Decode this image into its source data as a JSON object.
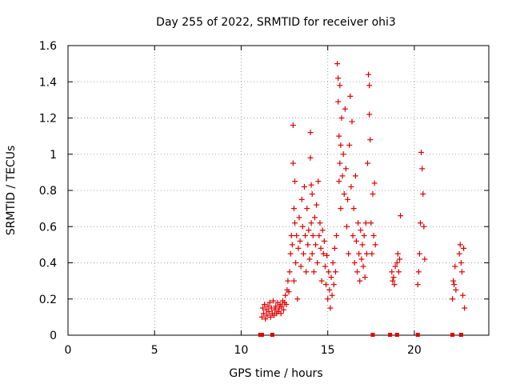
{
  "chart_data": {
    "type": "scatter",
    "title": "Day 255 of 2022, SRMTID for receiver ohi3",
    "xlabel": "GPS time / hours",
    "ylabel": "SRMTID / TECUs",
    "xlim": [
      0,
      24.3
    ],
    "ylim": [
      0,
      1.6
    ],
    "x_ticks": [
      0,
      5,
      10,
      15,
      20
    ],
    "x_tick_labels": [
      "0",
      "5",
      "10",
      "15",
      "20"
    ],
    "y_ticks": [
      0,
      0.2,
      0.4,
      0.6,
      0.8,
      1.0,
      1.2,
      1.4,
      1.6
    ],
    "y_tick_labels": [
      "0",
      "0.2",
      "0.4",
      "0.6",
      "0.8",
      "1",
      "1.2",
      "1.4",
      "1.6"
    ],
    "grid": true,
    "marker": "plus",
    "color": "#e00000",
    "series": [
      {
        "name": "SRMTID",
        "points": [
          [
            11.2,
            0.1
          ],
          [
            11.25,
            0.15
          ],
          [
            11.3,
            0.12
          ],
          [
            11.35,
            0.17
          ],
          [
            11.4,
            0.09
          ],
          [
            11.45,
            0.14
          ],
          [
            11.5,
            0.11
          ],
          [
            11.55,
            0.16
          ],
          [
            11.6,
            0.13
          ],
          [
            11.65,
            0.18
          ],
          [
            11.7,
            0.1
          ],
          [
            11.75,
            0.15
          ],
          [
            11.8,
            0.12
          ],
          [
            11.85,
            0.19
          ],
          [
            11.9,
            0.11
          ],
          [
            11.95,
            0.14
          ],
          [
            12.0,
            0.16
          ],
          [
            12.05,
            0.12
          ],
          [
            12.1,
            0.18
          ],
          [
            12.15,
            0.13
          ],
          [
            12.2,
            0.15
          ],
          [
            12.25,
            0.17
          ],
          [
            12.3,
            0.12
          ],
          [
            12.35,
            0.16
          ],
          [
            12.4,
            0.19
          ],
          [
            12.45,
            0.14
          ],
          [
            12.5,
            0.18
          ],
          [
            12.55,
            0.22
          ],
          [
            12.6,
            0.17
          ],
          [
            12.65,
            0.25
          ],
          [
            12.7,
            0.3
          ],
          [
            12.75,
            0.24
          ],
          [
            12.8,
            0.35
          ],
          [
            12.85,
            0.45
          ],
          [
            12.9,
            0.55
          ],
          [
            12.95,
            0.5
          ],
          [
            13.0,
            1.16
          ],
          [
            13.0,
            0.95
          ],
          [
            13.05,
            0.7
          ],
          [
            13.05,
            0.3
          ],
          [
            13.1,
            0.85
          ],
          [
            13.1,
            0.62
          ],
          [
            13.15,
            0.4
          ],
          [
            13.2,
            0.55
          ],
          [
            13.25,
            0.2
          ],
          [
            13.3,
            0.48
          ],
          [
            13.35,
            0.65
          ],
          [
            13.4,
            0.52
          ],
          [
            13.45,
            0.38
          ],
          [
            13.5,
            0.75
          ],
          [
            13.55,
            0.6
          ],
          [
            13.6,
            0.45
          ],
          [
            13.65,
            0.82
          ],
          [
            13.7,
            0.55
          ],
          [
            13.75,
            0.35
          ],
          [
            13.8,
            0.7
          ],
          [
            13.85,
            0.5
          ],
          [
            13.9,
            0.58
          ],
          [
            13.95,
            0.42
          ],
          [
            14.0,
            1.12
          ],
          [
            14.0,
            0.98
          ],
          [
            14.05,
            0.83
          ],
          [
            14.05,
            0.62
          ],
          [
            14.1,
            0.78
          ],
          [
            14.1,
            0.45
          ],
          [
            14.15,
            0.55
          ],
          [
            14.2,
            0.35
          ],
          [
            14.25,
            0.65
          ],
          [
            14.3,
            0.5
          ],
          [
            14.35,
            0.72
          ],
          [
            14.4,
            0.4
          ],
          [
            14.45,
            0.85
          ],
          [
            14.5,
            0.55
          ],
          [
            14.55,
            0.62
          ],
          [
            14.6,
            0.48
          ],
          [
            14.65,
            0.3
          ],
          [
            14.7,
            0.58
          ],
          [
            14.75,
            0.45
          ],
          [
            14.8,
            0.52
          ],
          [
            14.85,
            0.38
          ],
          [
            14.9,
            0.28
          ],
          [
            14.95,
            0.44
          ],
          [
            15.0,
            0.2
          ],
          [
            15.05,
            0.35
          ],
          [
            15.1,
            0.25
          ],
          [
            15.15,
            0.15
          ],
          [
            15.2,
            0.32
          ],
          [
            15.25,
            0.22
          ],
          [
            15.3,
            0.4
          ],
          [
            15.35,
            0.28
          ],
          [
            15.4,
            0.48
          ],
          [
            15.45,
            0.35
          ],
          [
            15.5,
            0.55
          ],
          [
            15.55,
            1.5
          ],
          [
            15.6,
            1.42
          ],
          [
            15.6,
            1.29
          ],
          [
            15.65,
            1.1
          ],
          [
            15.65,
            0.85
          ],
          [
            15.7,
            1.38
          ],
          [
            15.7,
            0.95
          ],
          [
            15.75,
            1.05
          ],
          [
            15.75,
            0.7
          ],
          [
            15.8,
            1.2
          ],
          [
            15.85,
            0.88
          ],
          [
            15.9,
            1.0
          ],
          [
            15.95,
            0.78
          ],
          [
            16.0,
            1.25
          ],
          [
            16.05,
            0.92
          ],
          [
            16.1,
            0.6
          ],
          [
            16.15,
            0.75
          ],
          [
            16.2,
            0.45
          ],
          [
            16.25,
            1.05
          ],
          [
            16.3,
            1.32
          ],
          [
            16.35,
            0.82
          ],
          [
            16.4,
            1.18
          ],
          [
            16.45,
            0.55
          ],
          [
            16.5,
            0.7
          ],
          [
            16.55,
            0.4
          ],
          [
            16.6,
            0.88
          ],
          [
            16.65,
            0.52
          ],
          [
            16.7,
            0.35
          ],
          [
            16.75,
            0.62
          ],
          [
            16.8,
            0.45
          ],
          [
            16.85,
            0.3
          ],
          [
            16.9,
            0.58
          ],
          [
            16.95,
            0.42
          ],
          [
            17.0,
            0.5
          ],
          [
            17.05,
            0.38
          ],
          [
            17.1,
            0.55
          ],
          [
            17.15,
            0.32
          ],
          [
            17.2,
            0.62
          ],
          [
            17.25,
            0.45
          ],
          [
            17.3,
            0.95
          ],
          [
            17.35,
            1.44
          ],
          [
            17.4,
            1.38
          ],
          [
            17.4,
            1.22
          ],
          [
            17.45,
            1.08
          ],
          [
            17.5,
            0.62
          ],
          [
            17.55,
            0.45
          ],
          [
            17.6,
            0.78
          ],
          [
            17.65,
            0.55
          ],
          [
            17.7,
            0.84
          ],
          [
            17.75,
            0.5
          ],
          [
            18.7,
            0.35
          ],
          [
            18.75,
            0.3
          ],
          [
            18.8,
            0.32
          ],
          [
            18.85,
            0.28
          ],
          [
            18.9,
            0.38
          ],
          [
            19.0,
            0.4
          ],
          [
            19.05,
            0.45
          ],
          [
            19.1,
            0.35
          ],
          [
            19.15,
            0.42
          ],
          [
            19.2,
            0.66
          ],
          [
            20.2,
            0.28
          ],
          [
            20.25,
            0.35
          ],
          [
            20.3,
            0.45
          ],
          [
            20.35,
            0.62
          ],
          [
            20.4,
            1.01
          ],
          [
            20.45,
            0.92
          ],
          [
            20.5,
            0.78
          ],
          [
            20.55,
            0.6
          ],
          [
            20.6,
            0.42
          ],
          [
            22.2,
            0.2
          ],
          [
            22.25,
            0.3
          ],
          [
            22.3,
            0.28
          ],
          [
            22.35,
            0.38
          ],
          [
            22.4,
            0.25
          ],
          [
            22.6,
            0.45
          ],
          [
            22.65,
            0.5
          ],
          [
            22.7,
            0.4
          ],
          [
            22.75,
            0.35
          ],
          [
            22.8,
            0.22
          ],
          [
            22.85,
            0.48
          ],
          [
            22.9,
            0.15
          ]
        ]
      }
    ],
    "zero_markers": [
      11.1,
      11.2,
      11.8,
      17.6,
      18.6,
      19.0,
      20.2,
      22.2,
      22.7
    ]
  }
}
